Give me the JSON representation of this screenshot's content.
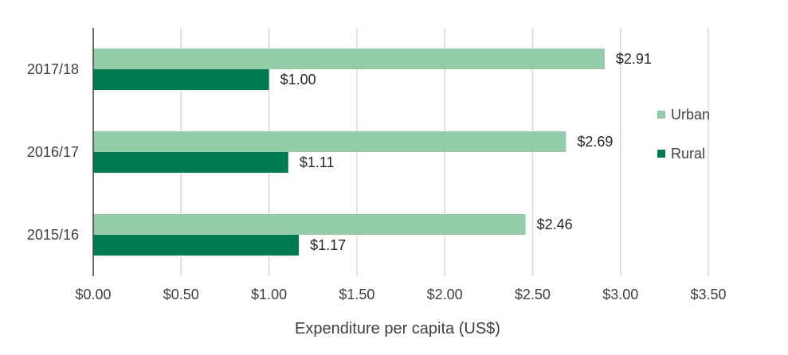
{
  "chart_data": {
    "type": "bar",
    "orientation": "horizontal",
    "categories": [
      "2017/18",
      "2016/17",
      "2015/16"
    ],
    "series": [
      {
        "name": "Urban",
        "values": [
          2.91,
          2.69,
          2.46
        ],
        "labels": [
          "$2.91",
          "$2.69",
          "$2.46"
        ],
        "color": "#94cca9"
      },
      {
        "name": "Rural",
        "values": [
          1.0,
          1.11,
          1.17
        ],
        "labels": [
          "$1.00",
          "$1.11",
          "$1.17"
        ],
        "color": "#007a53"
      }
    ],
    "xlim": [
      0,
      3.5
    ],
    "xticks": [
      0,
      0.5,
      1.0,
      1.5,
      2.0,
      2.5,
      3.0,
      3.5
    ],
    "xtick_labels": [
      "$0.00",
      "$0.50",
      "$1.00",
      "$1.50",
      "$2.00",
      "$2.50",
      "$3.00",
      "$3.50"
    ],
    "xlabel": "Expenditure per capita (US$)",
    "ylabel": "",
    "title": "",
    "grid": "vertical",
    "legend": "right"
  }
}
